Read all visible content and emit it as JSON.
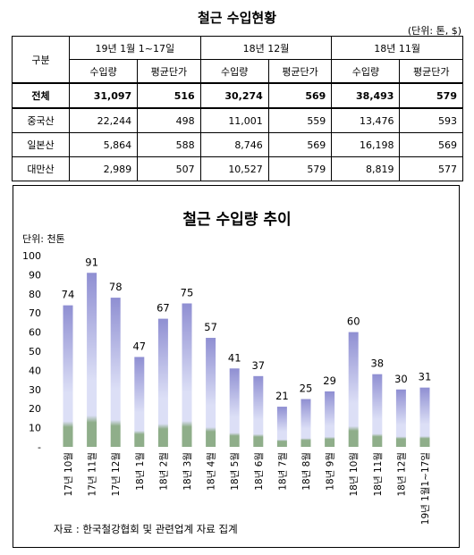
{
  "page": {
    "title": "철근 수입현황",
    "unit_note": "(단위: 톤, $)"
  },
  "table": {
    "group_header": "구분",
    "periods": [
      "19년 1월 1~17일",
      "18년 12월",
      "18년 11월"
    ],
    "subheaders": [
      "수입량",
      "평균단가",
      "수입량",
      "평균단가",
      "수입량",
      "평균단가"
    ],
    "rows": [
      {
        "label": "전체",
        "values": [
          "31,097",
          "516",
          "30,274",
          "569",
          "38,493",
          "579"
        ]
      },
      {
        "label": "중국산",
        "values": [
          "22,244",
          "498",
          "11,001",
          "559",
          "13,476",
          "593"
        ]
      },
      {
        "label": "일본산",
        "values": [
          "5,864",
          "588",
          "8,746",
          "569",
          "16,198",
          "569"
        ]
      },
      {
        "label": "대만산",
        "values": [
          "2,989",
          "507",
          "10,527",
          "579",
          "8,819",
          "577"
        ]
      }
    ]
  },
  "chart_data": {
    "type": "bar",
    "title": "철근 수입량 추이",
    "ylabel": "단위: 천톤",
    "ylim": [
      0,
      100
    ],
    "yticks": [
      "-",
      "10",
      "20",
      "30",
      "40",
      "50",
      "60",
      "70",
      "80",
      "90",
      "100"
    ],
    "categories": [
      "17년 10월",
      "17년 11월",
      "17년 12월",
      "18년 1월",
      "18년 2월",
      "18년 3월",
      "18년 4월",
      "18년 5월",
      "18년 6월",
      "18년 7월",
      "18년 8월",
      "18년 9월",
      "18년 10월",
      "18년 11월",
      "18년 12월",
      "19년 1월1~17일"
    ],
    "values": [
      74,
      91,
      78,
      47,
      67,
      75,
      57,
      41,
      37,
      21,
      25,
      29,
      60,
      38,
      30,
      31
    ],
    "source": "자료 : 한국철강협회 및 관련업계 자료 집계",
    "colors": {
      "bar_top": "#8f8fd2",
      "bar_mid": "#dcdff6",
      "bar_base": "#8fae8a"
    }
  }
}
